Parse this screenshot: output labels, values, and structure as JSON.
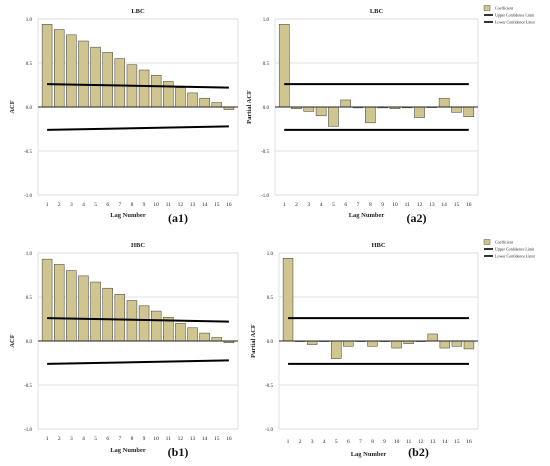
{
  "chart_data": [
    {
      "id": "a1",
      "type": "bar",
      "title": "LBC",
      "xlabel": "Lag Number",
      "ylabel": "ACF",
      "panel_label": "(a1)",
      "ylim": [
        -1.0,
        1.0
      ],
      "y_ticks": [
        "1.0",
        "0.5",
        "0.0",
        "-0.5",
        "-1.0"
      ],
      "categories": [
        "1",
        "2",
        "3",
        "4",
        "5",
        "6",
        "7",
        "8",
        "9",
        "10",
        "11",
        "12",
        "13",
        "14",
        "15",
        "16"
      ],
      "values": [
        0.94,
        0.88,
        0.82,
        0.75,
        0.68,
        0.62,
        0.55,
        0.48,
        0.42,
        0.36,
        0.29,
        0.22,
        0.16,
        0.1,
        0.05,
        -0.03
      ],
      "upper_confidence_limit": [
        0.26,
        0.22
      ],
      "lower_confidence_limit": [
        -0.26,
        -0.22
      ],
      "bar_color": "#d1c58f",
      "grid": "horizontal",
      "legend": null
    },
    {
      "id": "a2",
      "type": "bar",
      "title": "LBC",
      "xlabel": "Lag Number",
      "ylabel": "Partial ACF",
      "panel_label": "(a2)",
      "ylim": [
        -1.0,
        1.0
      ],
      "y_ticks": [
        "1.0",
        "0.5",
        "0.0",
        "-0.5",
        "-1.0"
      ],
      "categories": [
        "1",
        "2",
        "3",
        "4",
        "5",
        "6",
        "7",
        "8",
        "9",
        "10",
        "11",
        "12",
        "13",
        "14",
        "15",
        "16"
      ],
      "values": [
        0.94,
        -0.02,
        -0.05,
        -0.1,
        -0.22,
        0.08,
        -0.01,
        -0.18,
        -0.01,
        -0.02,
        -0.01,
        -0.12,
        0.0,
        0.1,
        -0.06,
        -0.11
      ],
      "upper_confidence_limit": [
        0.26,
        0.26
      ],
      "lower_confidence_limit": [
        -0.26,
        -0.26
      ],
      "bar_color": "#d1c58f",
      "grid": "horizontal",
      "legend": {
        "position": "top-right",
        "items": [
          "Coefficient",
          "Upper Confidence Limit",
          "Lower Confidence Limit"
        ]
      }
    },
    {
      "id": "b1",
      "type": "bar",
      "title": "HBC",
      "xlabel": "Lag Number",
      "ylabel": "ACF",
      "panel_label": "(b1)",
      "ylim": [
        -1.0,
        1.0
      ],
      "y_ticks": [
        "1.0",
        "0.5",
        "0.0",
        "-0.5",
        "-1.0"
      ],
      "categories": [
        "1",
        "2",
        "3",
        "4",
        "5",
        "6",
        "7",
        "8",
        "9",
        "10",
        "11",
        "12",
        "13",
        "14",
        "15",
        "16"
      ],
      "values": [
        0.93,
        0.87,
        0.8,
        0.74,
        0.67,
        0.6,
        0.53,
        0.46,
        0.4,
        0.34,
        0.27,
        0.2,
        0.15,
        0.09,
        0.04,
        -0.02
      ],
      "upper_confidence_limit": [
        0.26,
        0.22
      ],
      "lower_confidence_limit": [
        -0.26,
        -0.22
      ],
      "bar_color": "#d1c58f",
      "grid": "horizontal",
      "legend": null
    },
    {
      "id": "b2",
      "type": "bar",
      "title": "HBC",
      "xlabel": "Lag Number",
      "ylabel": "Partial ACF",
      "panel_label": "(b2)",
      "ylim": [
        -1.0,
        1.0
      ],
      "y_ticks": [
        "1.0",
        "0.5",
        "0.0",
        "-0.5",
        "-1.0"
      ],
      "categories": [
        "1",
        "2",
        "3",
        "4",
        "5",
        "6",
        "7",
        "8",
        "9",
        "10",
        "11",
        "12",
        "13",
        "14",
        "15",
        "16"
      ],
      "values": [
        0.94,
        0.0,
        -0.04,
        0.0,
        -0.2,
        -0.06,
        0.0,
        -0.06,
        0.0,
        -0.08,
        -0.03,
        0.0,
        0.08,
        -0.08,
        -0.06,
        -0.09
      ],
      "upper_confidence_limit": [
        0.26,
        0.26
      ],
      "lower_confidence_limit": [
        -0.26,
        -0.26
      ],
      "bar_color": "#d1c58f",
      "grid": "horizontal",
      "legend": {
        "position": "top-right",
        "items": [
          "Coefficient",
          "Upper Confidence Limit",
          "Lower Confidence Limit"
        ]
      }
    }
  ]
}
